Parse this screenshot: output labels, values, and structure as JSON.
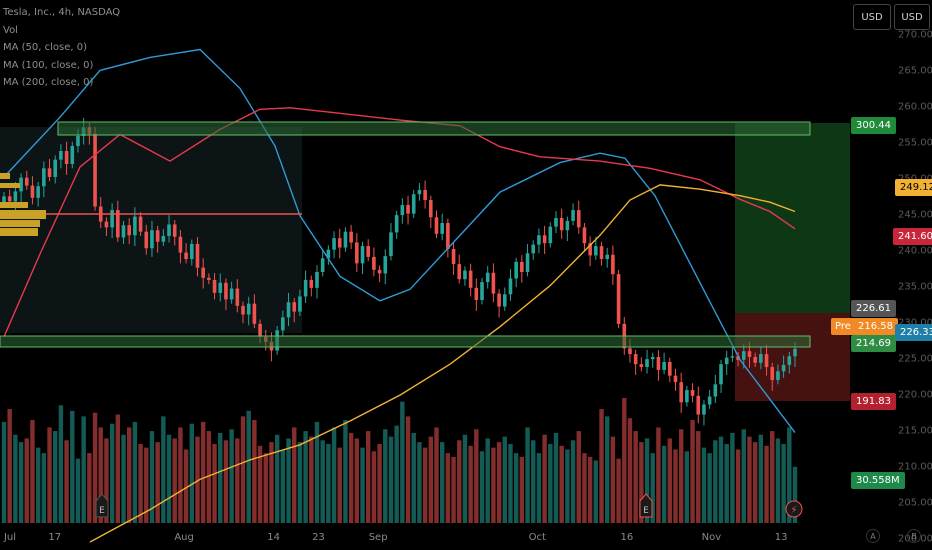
{
  "symbol": "Tesla, Inc., 4h, NASDAQ",
  "legend": [
    "Vol",
    "MA (50, close, 0)",
    "MA (100, close, 0)",
    "MA (200, close, 0)"
  ],
  "currency_buttons": [
    "USD",
    "USD"
  ],
  "price_tags": {
    "stop_level": "300.44",
    "yellow_ma": "249.12",
    "red_ma": "241.60",
    "gray_level": "226.61",
    "pre_label": "Pre",
    "pre_value": "216.58",
    "last_price": "226.33",
    "support": "214.69",
    "target": "191.83",
    "volume": "30.558M"
  },
  "axis_buttons": [
    "A",
    "B"
  ],
  "event_markers": {
    "earnings": "E",
    "dividend": "⚡"
  },
  "colors": {
    "up": "#26a69a",
    "down": "#ef5350",
    "ma_blue": "#2f9bd6",
    "ma_red": "#e8384f",
    "ma_yellow": "#f2b134",
    "zone_green": "#1e7a3c",
    "zone_red": "#7a1c1c",
    "band_green": "#3d8a4e"
  },
  "chart_data": {
    "type": "candlestick",
    "title": "Tesla, Inc., 4h, NASDAQ",
    "x_ticks": [
      "Jul",
      "17",
      "Aug",
      "14",
      "23",
      "Sep",
      "Oct",
      "16",
      "Nov",
      "13"
    ],
    "y_ticks": [
      270.0,
      265.0,
      260.0,
      255.0,
      250.0,
      245.0,
      240.0,
      235.0,
      230.0,
      225.0,
      220.0,
      215.0,
      210.0,
      205.0,
      200.0
    ],
    "ylim": [
      197,
      272
    ],
    "closes": [
      247.5,
      246.8,
      248.2,
      250.1,
      249.0,
      247.3,
      248.9,
      251.4,
      250.2,
      252.6,
      253.8,
      252.0,
      254.5,
      255.9,
      257.1,
      256.2,
      246.1,
      244.0,
      243.2,
      245.6,
      241.8,
      243.5,
      242.1,
      244.7,
      242.6,
      240.3,
      242.8,
      241.2,
      242.0,
      243.6,
      241.9,
      239.7,
      238.8,
      240.9,
      237.6,
      236.2,
      235.9,
      234.1,
      235.5,
      233.2,
      234.7,
      232.3,
      231.1,
      232.6,
      229.8,
      228.0,
      227.3,
      226.1,
      228.9,
      230.7,
      232.8,
      231.5,
      233.6,
      235.9,
      234.8,
      237.0,
      238.9,
      240.1,
      241.7,
      240.4,
      242.6,
      241.1,
      238.2,
      240.6,
      239.1,
      237.3,
      236.8,
      239.2,
      242.5,
      244.9,
      246.3,
      245.1,
      247.8,
      248.4,
      247.0,
      244.6,
      242.3,
      243.8,
      240.2,
      238.1,
      236.0,
      237.2,
      234.8,
      233.1,
      235.6,
      236.9,
      234.0,
      232.2,
      233.9,
      236.1,
      238.4,
      237.0,
      239.6,
      240.8,
      242.1,
      241.0,
      243.3,
      244.5,
      242.8,
      244.1,
      245.6,
      243.2,
      241.0,
      239.3,
      240.6,
      238.8,
      239.4,
      236.7,
      229.8,
      226.4,
      225.6,
      224.2,
      223.8,
      224.9,
      225.2,
      223.4,
      224.5,
      222.6,
      221.7,
      218.9,
      220.6,
      219.8,
      217.2,
      218.6,
      219.7,
      221.4,
      224.2,
      225.1,
      225.3,
      224.8,
      226.0,
      225.2,
      224.4,
      225.6,
      223.8,
      222.0,
      223.2,
      224.1,
      225.3,
      226.33
    ],
    "volume_m": [
      55,
      62,
      48,
      44,
      46,
      56,
      41,
      38,
      52,
      50,
      64,
      45,
      61,
      35,
      58,
      38,
      60,
      52,
      46,
      54,
      59,
      48,
      52,
      55,
      43,
      41,
      50,
      44,
      58,
      48,
      46,
      52,
      40,
      54,
      47,
      55,
      50,
      43,
      49,
      45,
      51,
      46,
      58,
      61,
      56,
      42,
      38,
      44,
      48,
      40,
      46,
      52,
      44,
      50,
      47,
      55,
      45,
      43,
      52,
      41,
      56,
      49,
      46,
      41,
      50,
      39,
      43,
      51,
      47,
      53,
      66,
      58,
      49,
      44,
      41,
      47,
      52,
      44,
      38,
      36,
      45,
      48,
      42,
      51,
      39,
      46,
      41,
      44,
      47,
      43,
      38,
      36,
      52,
      45,
      38,
      48,
      43,
      49,
      42,
      40,
      45,
      50,
      38,
      36,
      34,
      62,
      58,
      47,
      35,
      68,
      57,
      50,
      44,
      46,
      38,
      52,
      42,
      46,
      40,
      51,
      39,
      56,
      50,
      41,
      38,
      45,
      47,
      43,
      49,
      40,
      51,
      47,
      44,
      48,
      42,
      50,
      46,
      43,
      52,
      30.558
    ],
    "moving_averages": [
      {
        "name": "MA (50, close, 0)",
        "color": "#2f9bd6"
      },
      {
        "name": "MA (100, close, 0)",
        "color": "#e8384f"
      },
      {
        "name": "MA (200, close, 0)",
        "color": "#f2b134"
      }
    ],
    "levels": {
      "stop": 300.44,
      "support": 214.69,
      "target": 191.83,
      "last": 226.33
    },
    "grid": false,
    "legend_position": "top-left"
  }
}
